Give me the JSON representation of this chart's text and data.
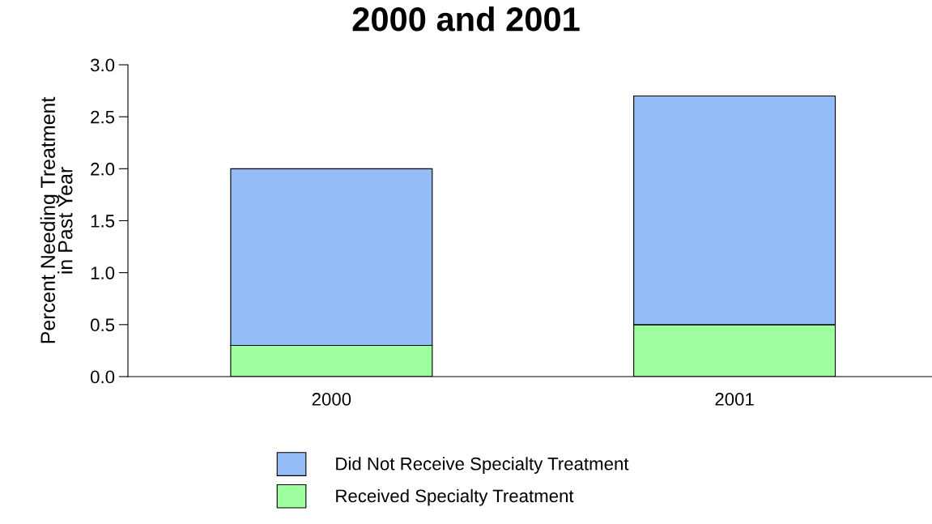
{
  "chart_data": {
    "type": "bar",
    "title": "2000 and 2001",
    "ylabel": "Percent Needing Treatment\nin Past Year",
    "categories": [
      "2000",
      "2001"
    ],
    "stacked": true,
    "series": [
      {
        "name": "Received Specialty Treatment",
        "color": "#9eff9e",
        "values": [
          0.3,
          0.5
        ]
      },
      {
        "name": "Did Not Receive Specialty Treatment",
        "color": "#94bcf7",
        "values": [
          1.7,
          2.2
        ]
      }
    ],
    "ylim": [
      0,
      3.0
    ],
    "yticks": [
      {
        "value": 0,
        "label": "0.0"
      },
      {
        "value": 0.5,
        "label": "0.5"
      },
      {
        "value": 1.0,
        "label": "1.0"
      },
      {
        "value": 1.5,
        "label": "1.5"
      },
      {
        "value": 2.0,
        "label": "2.0"
      },
      {
        "value": 2.5,
        "label": "2.5"
      },
      {
        "value": 3.0,
        "label": "3.0"
      }
    ],
    "legend": "bottom"
  }
}
